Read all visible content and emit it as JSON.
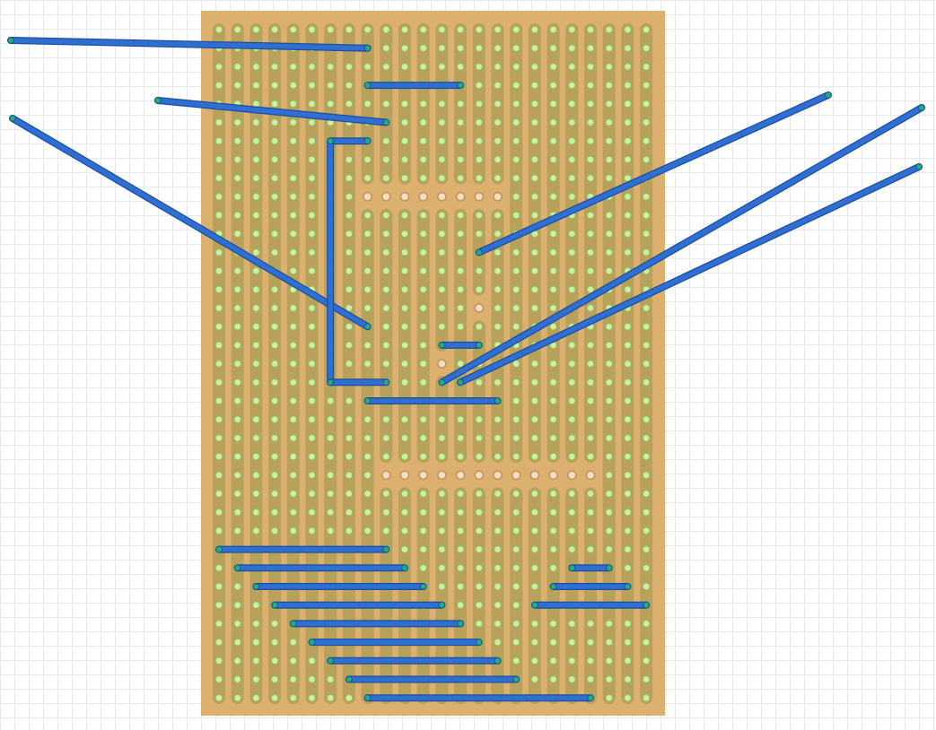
{
  "workspace": {
    "background": "#ffffff",
    "grid_color": "#e6e9ee"
  },
  "stripboard": {
    "columns": 24,
    "rows": 37,
    "strip_orientation": "vertical",
    "board_color": "#dcb06e",
    "strip_color": "#b8a15a",
    "hole_color": "#c9f0a3",
    "hole_outline_color": "#9cc06e",
    "cut_hole_color": "#f1dfc8",
    "cut_outline_color": "#c8935a",
    "trace_cuts": [
      {
        "row": 9,
        "cols": [
          8,
          9,
          10,
          11,
          12,
          13,
          14,
          15
        ]
      },
      {
        "row": 15,
        "cols": [
          14
        ]
      },
      {
        "row": 18,
        "cols": [
          12
        ]
      },
      {
        "row": 24,
        "cols": [
          9,
          10,
          11,
          12,
          13,
          14,
          15,
          16,
          17,
          18,
          19,
          20
        ]
      }
    ]
  },
  "wires": {
    "color": "#2f6fd4",
    "outline_color": "#1c4f9e",
    "endpoint_color": "#1fb07a",
    "items": [
      {
        "from": {
          "col": 8,
          "row": 1
        },
        "to": {
          "offboard": "left-upper"
        }
      },
      {
        "from": {
          "col": 8,
          "row": 3
        },
        "to": {
          "col": 13,
          "row": 3
        }
      },
      {
        "from": {
          "col": 9,
          "row": 5
        },
        "to": {
          "offboard": "left-middle"
        }
      },
      {
        "from": {
          "col": 8,
          "row": 16
        },
        "to": {
          "offboard": "left-lower"
        }
      },
      {
        "from": {
          "col": 6,
          "row": 6
        },
        "to": {
          "col": 8,
          "row": 6
        }
      },
      {
        "from": {
          "col": 6,
          "row": 6
        },
        "to": {
          "col": 6,
          "row": 19
        }
      },
      {
        "from": {
          "col": 6,
          "row": 19
        },
        "to": {
          "col": 9,
          "row": 19
        }
      },
      {
        "from": {
          "col": 14,
          "row": 12
        },
        "to": {
          "offboard": "right-upper"
        }
      },
      {
        "from": {
          "col": 12,
          "row": 19
        },
        "to": {
          "offboard": "right-middle"
        }
      },
      {
        "from": {
          "col": 13,
          "row": 19
        },
        "to": {
          "offboard": "right-lower"
        }
      },
      {
        "from": {
          "col": 12,
          "row": 17
        },
        "to": {
          "col": 14,
          "row": 17
        }
      },
      {
        "from": {
          "col": 8,
          "row": 20
        },
        "to": {
          "col": 15,
          "row": 20
        }
      },
      {
        "from": {
          "col": 0,
          "row": 28
        },
        "to": {
          "col": 9,
          "row": 28
        }
      },
      {
        "from": {
          "col": 1,
          "row": 29
        },
        "to": {
          "col": 10,
          "row": 29
        }
      },
      {
        "from": {
          "col": 2,
          "row": 30
        },
        "to": {
          "col": 11,
          "row": 30
        }
      },
      {
        "from": {
          "col": 3,
          "row": 31
        },
        "to": {
          "col": 12,
          "row": 31
        }
      },
      {
        "from": {
          "col": 4,
          "row": 32
        },
        "to": {
          "col": 13,
          "row": 32
        }
      },
      {
        "from": {
          "col": 5,
          "row": 33
        },
        "to": {
          "col": 14,
          "row": 33
        }
      },
      {
        "from": {
          "col": 6,
          "row": 34
        },
        "to": {
          "col": 15,
          "row": 34
        }
      },
      {
        "from": {
          "col": 7,
          "row": 35
        },
        "to": {
          "col": 16,
          "row": 35
        }
      },
      {
        "from": {
          "col": 8,
          "row": 36
        },
        "to": {
          "col": 20,
          "row": 36
        }
      },
      {
        "from": {
          "col": 19,
          "row": 29
        },
        "to": {
          "col": 21,
          "row": 29
        }
      },
      {
        "from": {
          "col": 18,
          "row": 30
        },
        "to": {
          "col": 22,
          "row": 30
        }
      },
      {
        "from": {
          "col": 17,
          "row": 31
        },
        "to": {
          "col": 23,
          "row": 31
        }
      }
    ]
  }
}
